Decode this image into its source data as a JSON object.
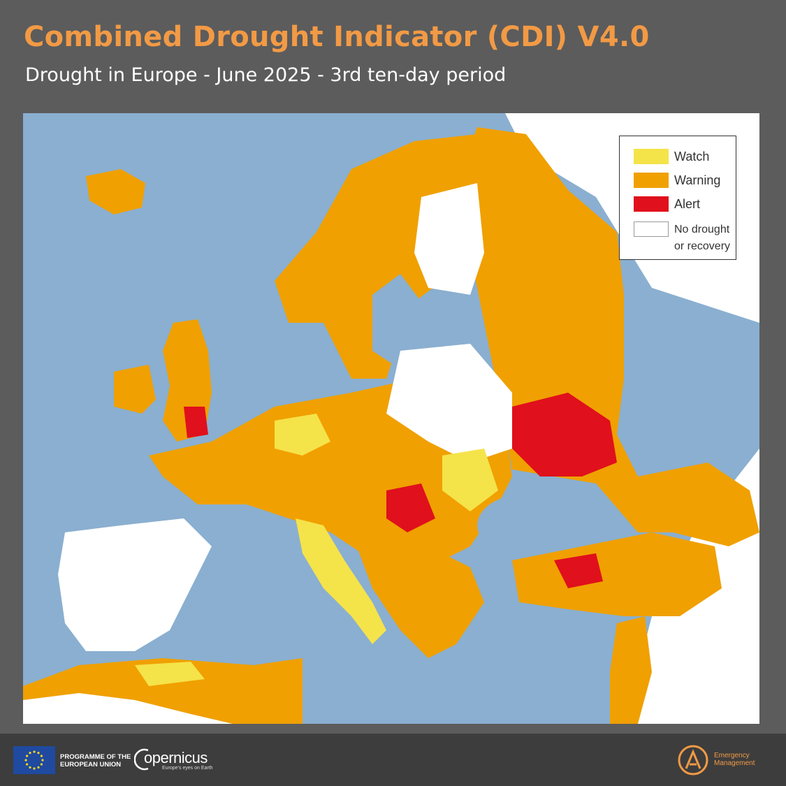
{
  "header": {
    "title": "Combined Drought Indicator (CDI) V4.0",
    "subtitle": "Drought in Europe - June 2025 - 3rd ten-day period"
  },
  "legend": {
    "items": [
      {
        "label": "Watch",
        "color": "#f5e34a"
      },
      {
        "label": "Warning",
        "color": "#f0a000"
      },
      {
        "label": "Alert",
        "color": "#e0101c"
      },
      {
        "label_line1": "No drought",
        "label_line2": "or recovery",
        "color": "#ffffff"
      }
    ]
  },
  "map": {
    "sea_color": "#8aafd0",
    "land_color": "#ffffff",
    "region": "Europe"
  },
  "footer": {
    "eu_line1": "PROGRAMME OF THE",
    "eu_line2": "EUROPEAN UNION",
    "copernicus_name": "opernicus",
    "copernicus_tagline": "Europe's eyes on Earth",
    "em_line1": "Emergency",
    "em_line2": "Management"
  },
  "icons": {
    "eu": "eu-flag-icon",
    "copernicus": "copernicus-logo-icon",
    "emergency": "emergency-management-icon"
  }
}
